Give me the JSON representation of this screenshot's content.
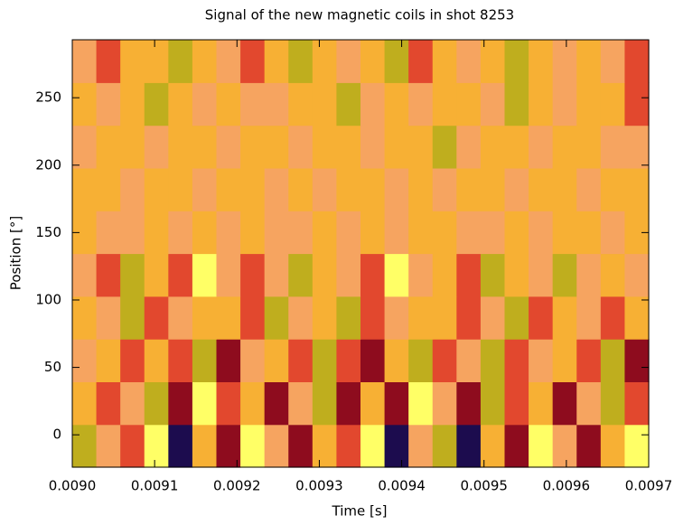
{
  "chart_data": {
    "type": "heatmap",
    "title": "Signal of the new magnetic coils in shot 8253",
    "xlabel": "Time [s]",
    "ylabel": "Position [°]",
    "xlim": [
      0.009,
      0.0097
    ],
    "xticks": [
      {
        "value": 0.009,
        "label": "0.0090"
      },
      0.0091,
      0.0092,
      0.0093,
      0.0094,
      0.0095,
      0.0096,
      0.0097
    ],
    "ylim": [
      -24,
      293
    ],
    "yticks": [
      0,
      50,
      100,
      150,
      200,
      250
    ],
    "zlim": [
      -3,
      3
    ],
    "colormap": [
      "#1c0c4e",
      "#8e0c1e",
      "#e2482e",
      "#f6a460",
      "#f7b034",
      "#bfae1e",
      "#ffff66"
    ],
    "z": [
      [
        2,
        0,
        -1,
        3,
        -3,
        1,
        -2,
        3,
        0,
        -2,
        1,
        -1,
        3,
        -3,
        0,
        2,
        -3,
        1,
        -2,
        3,
        0,
        -2,
        1,
        3
      ],
      [
        1,
        -1,
        0,
        2,
        -2,
        3,
        -1,
        1,
        -2,
        0,
        2,
        -2,
        1,
        -2,
        3,
        0,
        -2,
        2,
        -1,
        1,
        -2,
        0,
        2,
        -1
      ],
      [
        0,
        1,
        -1,
        1,
        -1,
        2,
        -2,
        0,
        1,
        -1,
        2,
        -1,
        -2,
        1,
        2,
        -1,
        0,
        2,
        -1,
        0,
        1,
        -1,
        2,
        -2
      ],
      [
        1,
        0,
        2,
        -1,
        0,
        1,
        1,
        -1,
        2,
        0,
        1,
        2,
        -1,
        0,
        1,
        1,
        -1,
        0,
        2,
        -1,
        1,
        0,
        -1,
        1
      ],
      [
        0,
        -1,
        2,
        1,
        -1,
        3,
        0,
        -1,
        0,
        2,
        1,
        0,
        -1,
        3,
        0,
        1,
        -1,
        2,
        1,
        0,
        2,
        0,
        1,
        0
      ],
      [
        1,
        0,
        0,
        1,
        0,
        1,
        0,
        1,
        0,
        0,
        1,
        0,
        1,
        0,
        1,
        1,
        0,
        0,
        1,
        0,
        1,
        1,
        0,
        1
      ],
      [
        1,
        1,
        0,
        1,
        1,
        0,
        1,
        1,
        0,
        1,
        0,
        1,
        1,
        0,
        1,
        0,
        1,
        1,
        0,
        1,
        1,
        0,
        1,
        1
      ],
      [
        0,
        1,
        1,
        0,
        1,
        1,
        0,
        1,
        1,
        0,
        1,
        1,
        0,
        1,
        1,
        2,
        0,
        1,
        1,
        0,
        1,
        1,
        0,
        0
      ],
      [
        1,
        0,
        1,
        2,
        1,
        0,
        1,
        0,
        0,
        1,
        1,
        2,
        0,
        1,
        0,
        1,
        1,
        0,
        2,
        1,
        0,
        1,
        1,
        -1
      ],
      [
        0,
        -1,
        1,
        1,
        2,
        1,
        0,
        -1,
        1,
        2,
        1,
        0,
        1,
        2,
        -1,
        1,
        0,
        1,
        2,
        1,
        0,
        1,
        0,
        -1
      ]
    ]
  }
}
